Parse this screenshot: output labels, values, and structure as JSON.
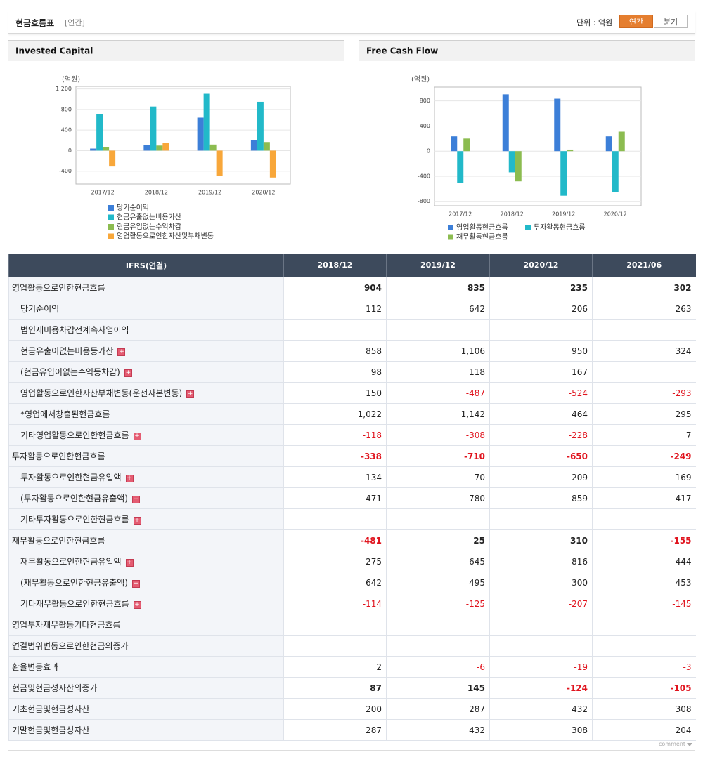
{
  "header": {
    "title": "현금흐름표",
    "subtitle": "[연간]",
    "unit_label": "단위 : 억원",
    "tabs": [
      "연간",
      "분기"
    ],
    "active_tab": 0
  },
  "chart_data": [
    {
      "type": "bar",
      "title": "Invested Capital",
      "unit": "(억원)",
      "categories": [
        "2017/12",
        "2018/12",
        "2019/12",
        "2020/12"
      ],
      "series": [
        {
          "name": "당기순이익",
          "color": "#3c7fd8",
          "values": [
            40,
            112,
            642,
            206
          ]
        },
        {
          "name": "현금유출없는비용가산",
          "color": "#22b9c9",
          "values": [
            710,
            858,
            1106,
            950
          ]
        },
        {
          "name": "현금유입없는수익차감",
          "color": "#8cbc50",
          "values": [
            70,
            98,
            118,
            167
          ]
        },
        {
          "name": "영업활동으로인한자산및부채변동",
          "color": "#f8a73a",
          "values": [
            -310,
            150,
            -487,
            -524
          ]
        }
      ],
      "ylim": [
        -650,
        1250
      ],
      "yticks": [
        {
          "value": 1200,
          "label": "1,200"
        },
        800,
        400,
        0,
        -400
      ],
      "grid": true
    },
    {
      "type": "bar",
      "title": "Free Cash Flow",
      "unit": "(억원)",
      "categories": [
        "2017/12",
        "2018/12",
        "2019/12",
        "2020/12"
      ],
      "series": [
        {
          "name": "영업활동현금흐름",
          "color": "#3c7fd8",
          "values": [
            235,
            904,
            835,
            235
          ]
        },
        {
          "name": "투자활동현금흐름",
          "color": "#22b9c9",
          "values": [
            -510,
            -338,
            -710,
            -650
          ]
        },
        {
          "name": "재무활동현금흐름",
          "color": "#8cbc50",
          "values": [
            200,
            -481,
            25,
            310
          ]
        }
      ],
      "ylim": [
        -870,
        1020
      ],
      "yticks": [
        800,
        400,
        0,
        -400,
        -800
      ],
      "grid": true
    }
  ],
  "table": {
    "columns": [
      "IFRS(연결)",
      "2018/12",
      "2019/12",
      "2020/12",
      "2021/06"
    ],
    "rows": [
      {
        "label": "영업활동으로인한현금흐름",
        "level": 0,
        "bold": true,
        "values": [
          "904",
          "835",
          "235",
          "302"
        ]
      },
      {
        "label": "당기순이익",
        "level": 1,
        "values": [
          "112",
          "642",
          "206",
          "263"
        ]
      },
      {
        "label": "법인세비용차감전계속사업이익",
        "level": 1,
        "values": [
          null,
          null,
          null,
          null
        ]
      },
      {
        "label": "현금유출이없는비용등가산",
        "level": 1,
        "expandable": true,
        "values": [
          "858",
          "1,106",
          "950",
          "324"
        ]
      },
      {
        "label": "(현금유입이없는수익등차감)",
        "level": 1,
        "expandable": true,
        "values": [
          "98",
          "118",
          "167",
          null
        ]
      },
      {
        "label": "영업활동으로인한자산부채변동(운전자본변동)",
        "level": 1,
        "expandable": true,
        "values": [
          "150",
          "-487",
          "-524",
          "-293"
        ]
      },
      {
        "label": "*영업에서창출된현금흐름",
        "level": 1,
        "values": [
          "1,022",
          "1,142",
          "464",
          "295"
        ]
      },
      {
        "label": "기타영업활동으로인한현금흐름",
        "level": 1,
        "expandable": true,
        "values": [
          "-118",
          "-308",
          "-228",
          "7"
        ]
      },
      {
        "label": "투자활동으로인한현금흐름",
        "level": 0,
        "bold": true,
        "values": [
          "-338",
          "-710",
          "-650",
          "-249"
        ]
      },
      {
        "label": "투자활동으로인한현금유입액",
        "level": 1,
        "expandable": true,
        "values": [
          "134",
          "70",
          "209",
          "169"
        ]
      },
      {
        "label": "(투자활동으로인한현금유출액)",
        "level": 1,
        "expandable": true,
        "values": [
          "471",
          "780",
          "859",
          "417"
        ]
      },
      {
        "label": "기타투자활동으로인한현금흐름",
        "level": 1,
        "expandable": true,
        "values": [
          null,
          null,
          null,
          null
        ]
      },
      {
        "label": "재무활동으로인한현금흐름",
        "level": 0,
        "bold": true,
        "values": [
          "-481",
          "25",
          "310",
          "-155"
        ]
      },
      {
        "label": "재무활동으로인한현금유입액",
        "level": 1,
        "expandable": true,
        "values": [
          "275",
          "645",
          "816",
          "444"
        ]
      },
      {
        "label": "(재무활동으로인한현금유출액)",
        "level": 1,
        "expandable": true,
        "values": [
          "642",
          "495",
          "300",
          "453"
        ]
      },
      {
        "label": "기타재무활동으로인한현금흐름",
        "level": 1,
        "expandable": true,
        "values": [
          "-114",
          "-125",
          "-207",
          "-145"
        ]
      },
      {
        "label": "영업투자재무활동기타현금흐름",
        "level": 0,
        "values": [
          null,
          null,
          null,
          null
        ]
      },
      {
        "label": "연결범위변동으로인한현금의증가",
        "level": 0,
        "values": [
          null,
          null,
          null,
          null
        ]
      },
      {
        "label": "환율변동효과",
        "level": 0,
        "values": [
          "2",
          "-6",
          "-19",
          "-3"
        ]
      },
      {
        "label": "현금및현금성자산의증가",
        "level": 0,
        "bold": true,
        "values": [
          "87",
          "145",
          "-124",
          "-105"
        ]
      },
      {
        "label": "기초현금및현금성자산",
        "level": 0,
        "values": [
          "200",
          "287",
          "432",
          "308"
        ]
      },
      {
        "label": "기말현금및현금성자산",
        "level": 0,
        "values": [
          "287",
          "432",
          "308",
          "204"
        ]
      }
    ]
  },
  "footer": {
    "label": "comment"
  }
}
